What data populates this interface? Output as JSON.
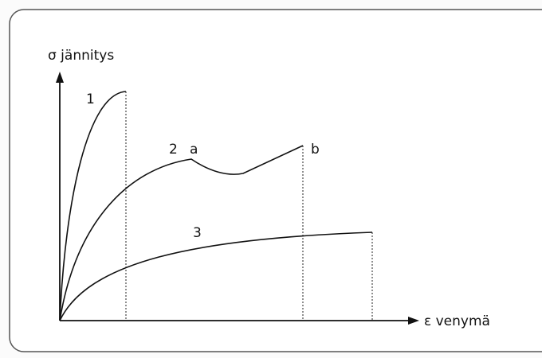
{
  "axes": {
    "y_label": "σ jännitys",
    "x_label": "ε venymä"
  },
  "curves": [
    {
      "label": "1"
    },
    {
      "label": "2",
      "points": [
        "a",
        "b"
      ]
    },
    {
      "label": "3"
    }
  ]
}
